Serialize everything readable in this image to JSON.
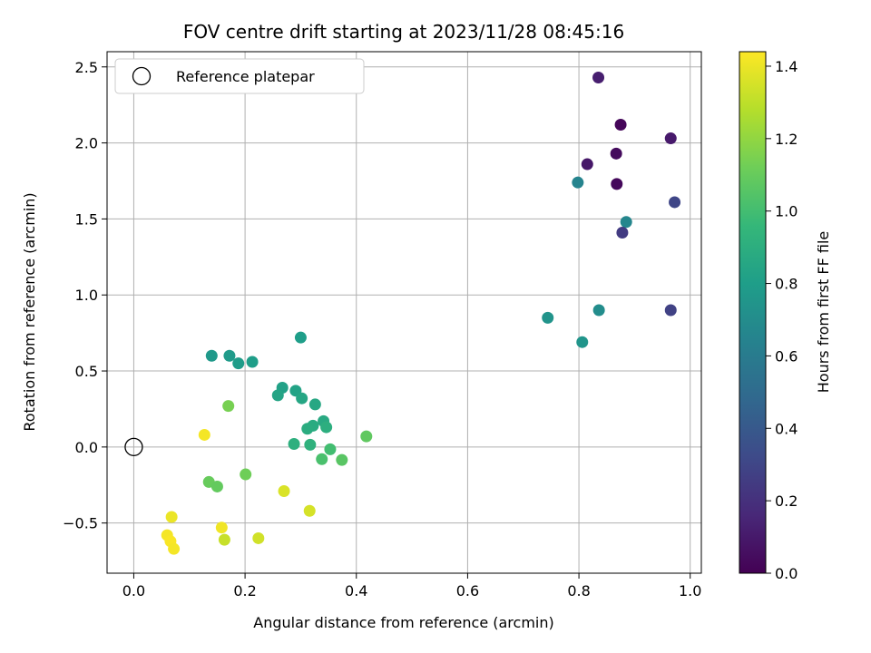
{
  "chart_data": {
    "type": "scatter",
    "title": "FOV centre drift starting at 2023/11/28 08:45:16",
    "xlabel": "Angular distance from reference (arcmin)",
    "ylabel": "Rotation from reference (arcmin)",
    "xlim": [
      -0.048,
      1.02
    ],
    "ylim": [
      -0.83,
      2.6
    ],
    "xticks": [
      0.0,
      0.2,
      0.4,
      0.6,
      0.8,
      1.0
    ],
    "xtick_labels": [
      "0.0",
      "0.2",
      "0.4",
      "0.6",
      "0.8",
      "1.0"
    ],
    "yticks": [
      -0.5,
      0.0,
      0.5,
      1.0,
      1.5,
      2.0,
      2.5
    ],
    "ytick_labels": [
      "−0.5",
      "0.0",
      "0.5",
      "1.0",
      "1.5",
      "2.0",
      "2.5"
    ],
    "grid": true,
    "legend": {
      "placement": "upper-left",
      "entries": [
        "Reference platepar"
      ]
    },
    "reference_point": {
      "name": "Reference platepar",
      "x": 0.0,
      "y": 0.0,
      "marker": "open-circle"
    },
    "colorbar": {
      "label": "Hours from first FF file",
      "range": [
        0.0,
        1.44
      ],
      "ticks": [
        0.0,
        0.2,
        0.4,
        0.6,
        0.8,
        1.0,
        1.2,
        1.4
      ],
      "tick_labels": [
        "0.0",
        "0.2",
        "0.4",
        "0.6",
        "0.8",
        "1.0",
        "1.2",
        "1.4"
      ],
      "colormap": "viridis",
      "stops": [
        "#440154",
        "#482878",
        "#3e4a89",
        "#31688e",
        "#26828e",
        "#1f9e89",
        "#35b779",
        "#6ece58",
        "#b5de2b",
        "#fde725"
      ]
    },
    "points": [
      {
        "x": 0.835,
        "y": 2.43,
        "c": 0.12
      },
      {
        "x": 0.875,
        "y": 2.12,
        "c": 0.02
      },
      {
        "x": 0.965,
        "y": 2.03,
        "c": 0.1
      },
      {
        "x": 0.867,
        "y": 1.93,
        "c": 0.04
      },
      {
        "x": 0.815,
        "y": 1.86,
        "c": 0.09
      },
      {
        "x": 0.868,
        "y": 1.73,
        "c": 0.03
      },
      {
        "x": 0.798,
        "y": 1.74,
        "c": 0.65
      },
      {
        "x": 0.972,
        "y": 1.61,
        "c": 0.3
      },
      {
        "x": 0.885,
        "y": 1.48,
        "c": 0.66
      },
      {
        "x": 0.878,
        "y": 1.41,
        "c": 0.25
      },
      {
        "x": 0.965,
        "y": 0.9,
        "c": 0.28
      },
      {
        "x": 0.836,
        "y": 0.9,
        "c": 0.7
      },
      {
        "x": 0.744,
        "y": 0.85,
        "c": 0.74
      },
      {
        "x": 0.806,
        "y": 0.69,
        "c": 0.75
      },
      {
        "x": 0.3,
        "y": 0.72,
        "c": 0.8
      },
      {
        "x": 0.14,
        "y": 0.6,
        "c": 0.77
      },
      {
        "x": 0.172,
        "y": 0.6,
        "c": 0.78
      },
      {
        "x": 0.188,
        "y": 0.55,
        "c": 0.79
      },
      {
        "x": 0.213,
        "y": 0.56,
        "c": 0.8
      },
      {
        "x": 0.267,
        "y": 0.39,
        "c": 0.82
      },
      {
        "x": 0.291,
        "y": 0.37,
        "c": 0.83
      },
      {
        "x": 0.259,
        "y": 0.34,
        "c": 0.84
      },
      {
        "x": 0.302,
        "y": 0.32,
        "c": 0.85
      },
      {
        "x": 0.326,
        "y": 0.28,
        "c": 0.86
      },
      {
        "x": 0.341,
        "y": 0.17,
        "c": 0.87
      },
      {
        "x": 0.322,
        "y": 0.14,
        "c": 0.88
      },
      {
        "x": 0.312,
        "y": 0.12,
        "c": 0.89
      },
      {
        "x": 0.346,
        "y": 0.13,
        "c": 0.9
      },
      {
        "x": 0.288,
        "y": 0.02,
        "c": 0.91
      },
      {
        "x": 0.317,
        "y": 0.015,
        "c": 0.92
      },
      {
        "x": 0.353,
        "y": -0.015,
        "c": 1.0
      },
      {
        "x": 0.338,
        "y": -0.08,
        "c": 1.02
      },
      {
        "x": 0.374,
        "y": -0.085,
        "c": 1.06
      },
      {
        "x": 0.418,
        "y": 0.07,
        "c": 1.08
      },
      {
        "x": 0.17,
        "y": 0.27,
        "c": 1.14
      },
      {
        "x": 0.201,
        "y": -0.18,
        "c": 1.12
      },
      {
        "x": 0.135,
        "y": -0.23,
        "c": 1.1
      },
      {
        "x": 0.15,
        "y": -0.26,
        "c": 1.09
      },
      {
        "x": 0.127,
        "y": 0.08,
        "c": 1.42
      },
      {
        "x": 0.27,
        "y": -0.29,
        "c": 1.36
      },
      {
        "x": 0.316,
        "y": -0.42,
        "c": 1.35
      },
      {
        "x": 0.068,
        "y": -0.46,
        "c": 1.4
      },
      {
        "x": 0.158,
        "y": -0.53,
        "c": 1.41
      },
      {
        "x": 0.06,
        "y": -0.58,
        "c": 1.42
      },
      {
        "x": 0.066,
        "y": -0.62,
        "c": 1.43
      },
      {
        "x": 0.163,
        "y": -0.61,
        "c": 1.32
      },
      {
        "x": 0.224,
        "y": -0.6,
        "c": 1.34
      },
      {
        "x": 0.072,
        "y": -0.67,
        "c": 1.42
      }
    ]
  }
}
